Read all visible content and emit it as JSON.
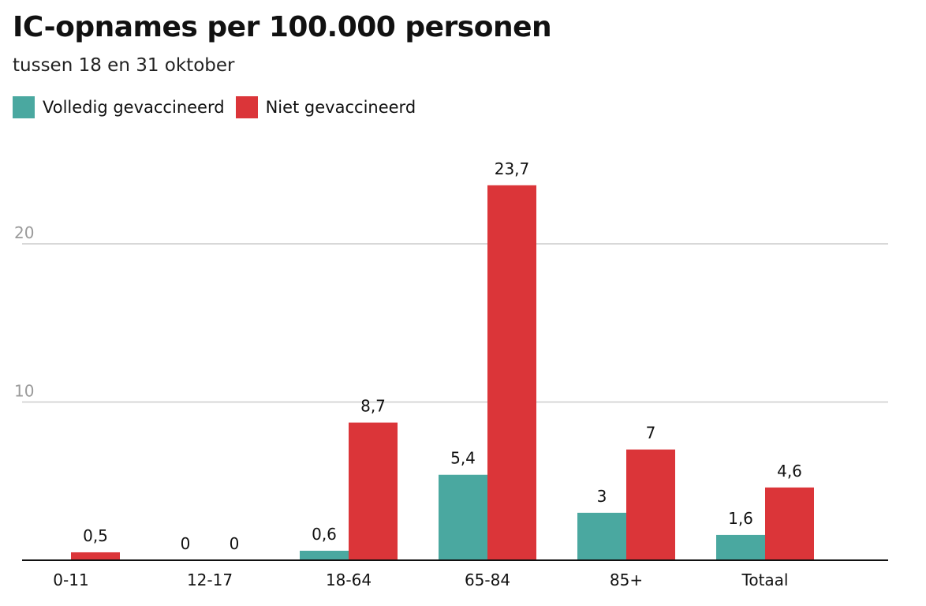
{
  "chart_data": {
    "type": "bar",
    "title": "IC-opnames per 100.000 personen",
    "subtitle": "tussen 18 en 31 oktober",
    "categories": [
      "0-11",
      "12-17",
      "18-64",
      "65-84",
      "85+",
      "Totaal"
    ],
    "series": [
      {
        "name": "Volledig gevaccineerd",
        "color": "#4aa8a0",
        "values": [
          null,
          0,
          0.6,
          5.4,
          3,
          1.6
        ],
        "labels": [
          "",
          "0",
          "0,6",
          "5,4",
          "3",
          "1,6"
        ]
      },
      {
        "name": "Niet gevaccineerd",
        "color": "#db3539",
        "values": [
          0.5,
          0,
          8.7,
          23.7,
          7,
          4.6
        ],
        "labels": [
          "0,5",
          "0",
          "8,7",
          "23,7",
          "7",
          "4,6"
        ]
      }
    ],
    "yticks": [
      10,
      20
    ],
    "ylim": [
      0,
      26
    ],
    "xlabel": "",
    "ylabel": "",
    "grid": true,
    "legend_position": "top-left"
  }
}
